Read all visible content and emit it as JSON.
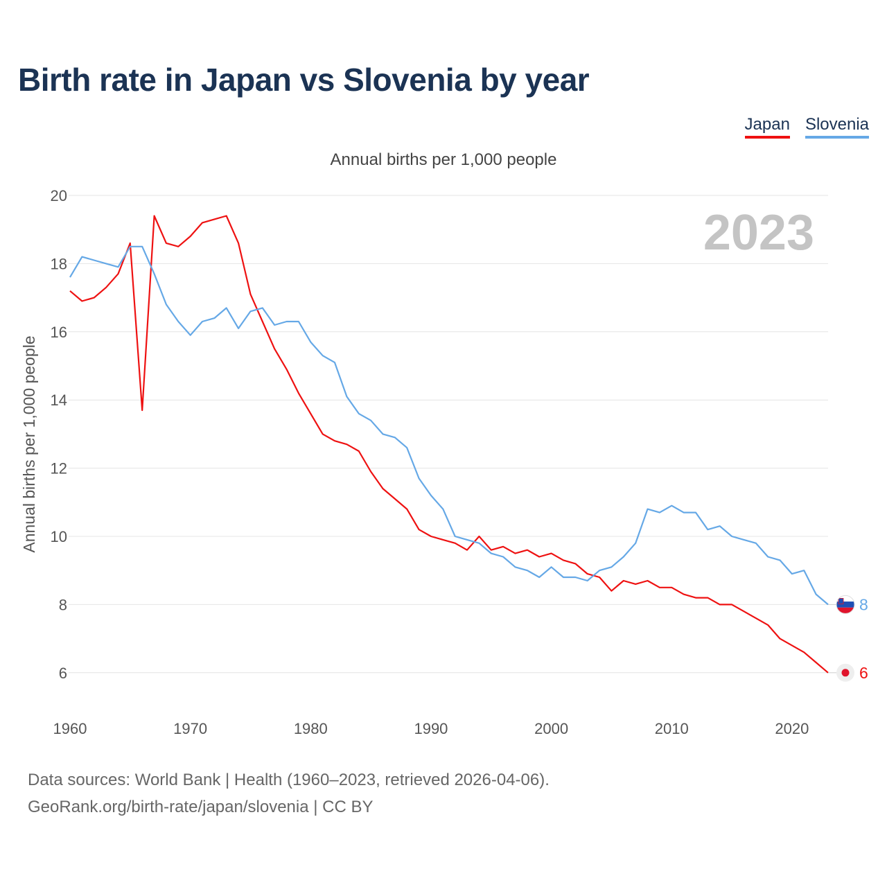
{
  "chart_data": {
    "type": "line",
    "title": "Birth rate in Japan vs Slovenia by year",
    "subtitle": "Annual births per 1,000 people",
    "ylabel": "Annual births per 1,000 people",
    "xlabel": "",
    "year_label": "2023",
    "xlim": [
      1960,
      2023
    ],
    "ylim": [
      5,
      20
    ],
    "yticks": [
      6,
      8,
      10,
      12,
      14,
      16,
      18,
      20
    ],
    "xticks": [
      1960,
      1970,
      1980,
      1990,
      2000,
      2010,
      2020
    ],
    "grid": true,
    "legend_position": "top-right",
    "x": [
      1960,
      1961,
      1962,
      1963,
      1964,
      1965,
      1966,
      1967,
      1968,
      1969,
      1970,
      1971,
      1972,
      1973,
      1974,
      1975,
      1976,
      1977,
      1978,
      1979,
      1980,
      1981,
      1982,
      1983,
      1984,
      1985,
      1986,
      1987,
      1988,
      1989,
      1990,
      1991,
      1992,
      1993,
      1994,
      1995,
      1996,
      1997,
      1998,
      1999,
      2000,
      2001,
      2002,
      2003,
      2004,
      2005,
      2006,
      2007,
      2008,
      2009,
      2010,
      2011,
      2012,
      2013,
      2014,
      2015,
      2016,
      2017,
      2018,
      2019,
      2020,
      2021,
      2022,
      2023
    ],
    "series": [
      {
        "name": "Japan",
        "color": "#ee1111",
        "end_label": "6",
        "flag": "japan-flag",
        "values": [
          17.2,
          16.9,
          17.0,
          17.3,
          17.7,
          18.6,
          13.7,
          19.4,
          18.6,
          18.5,
          18.8,
          19.2,
          19.3,
          19.4,
          18.6,
          17.1,
          16.3,
          15.5,
          14.9,
          14.2,
          13.6,
          13.0,
          12.8,
          12.7,
          12.5,
          11.9,
          11.4,
          11.1,
          10.8,
          10.2,
          10.0,
          9.9,
          9.8,
          9.6,
          10.0,
          9.6,
          9.7,
          9.5,
          9.6,
          9.4,
          9.5,
          9.3,
          9.2,
          8.9,
          8.8,
          8.4,
          8.7,
          8.6,
          8.7,
          8.5,
          8.5,
          8.3,
          8.2,
          8.2,
          8.0,
          8.0,
          7.8,
          7.6,
          7.4,
          7.0,
          6.8,
          6.6,
          6.3,
          6.0
        ]
      },
      {
        "name": "Slovenia",
        "color": "#65a8e6",
        "end_label": "8",
        "flag": "slovenia-flag",
        "values": [
          17.6,
          18.2,
          18.1,
          18.0,
          17.9,
          18.5,
          18.5,
          17.7,
          16.8,
          16.3,
          15.9,
          16.3,
          16.4,
          16.7,
          16.1,
          16.6,
          16.7,
          16.2,
          16.3,
          16.3,
          15.7,
          15.3,
          15.1,
          14.1,
          13.6,
          13.4,
          13.0,
          12.9,
          12.6,
          11.7,
          11.2,
          10.8,
          10.0,
          9.9,
          9.8,
          9.5,
          9.4,
          9.1,
          9.0,
          8.8,
          9.1,
          8.8,
          8.8,
          8.7,
          9.0,
          9.1,
          9.4,
          9.8,
          10.8,
          10.7,
          10.9,
          10.7,
          10.7,
          10.2,
          10.3,
          10.0,
          9.9,
          9.8,
          9.4,
          9.3,
          8.9,
          9.0,
          8.3,
          8.0
        ]
      }
    ]
  },
  "footer": {
    "line1": "Data sources: World Bank | Health (1960–2023, retrieved 2026-04-06).",
    "line2": "GeoRank.org/birth-rate/japan/slovenia | CC BY"
  }
}
